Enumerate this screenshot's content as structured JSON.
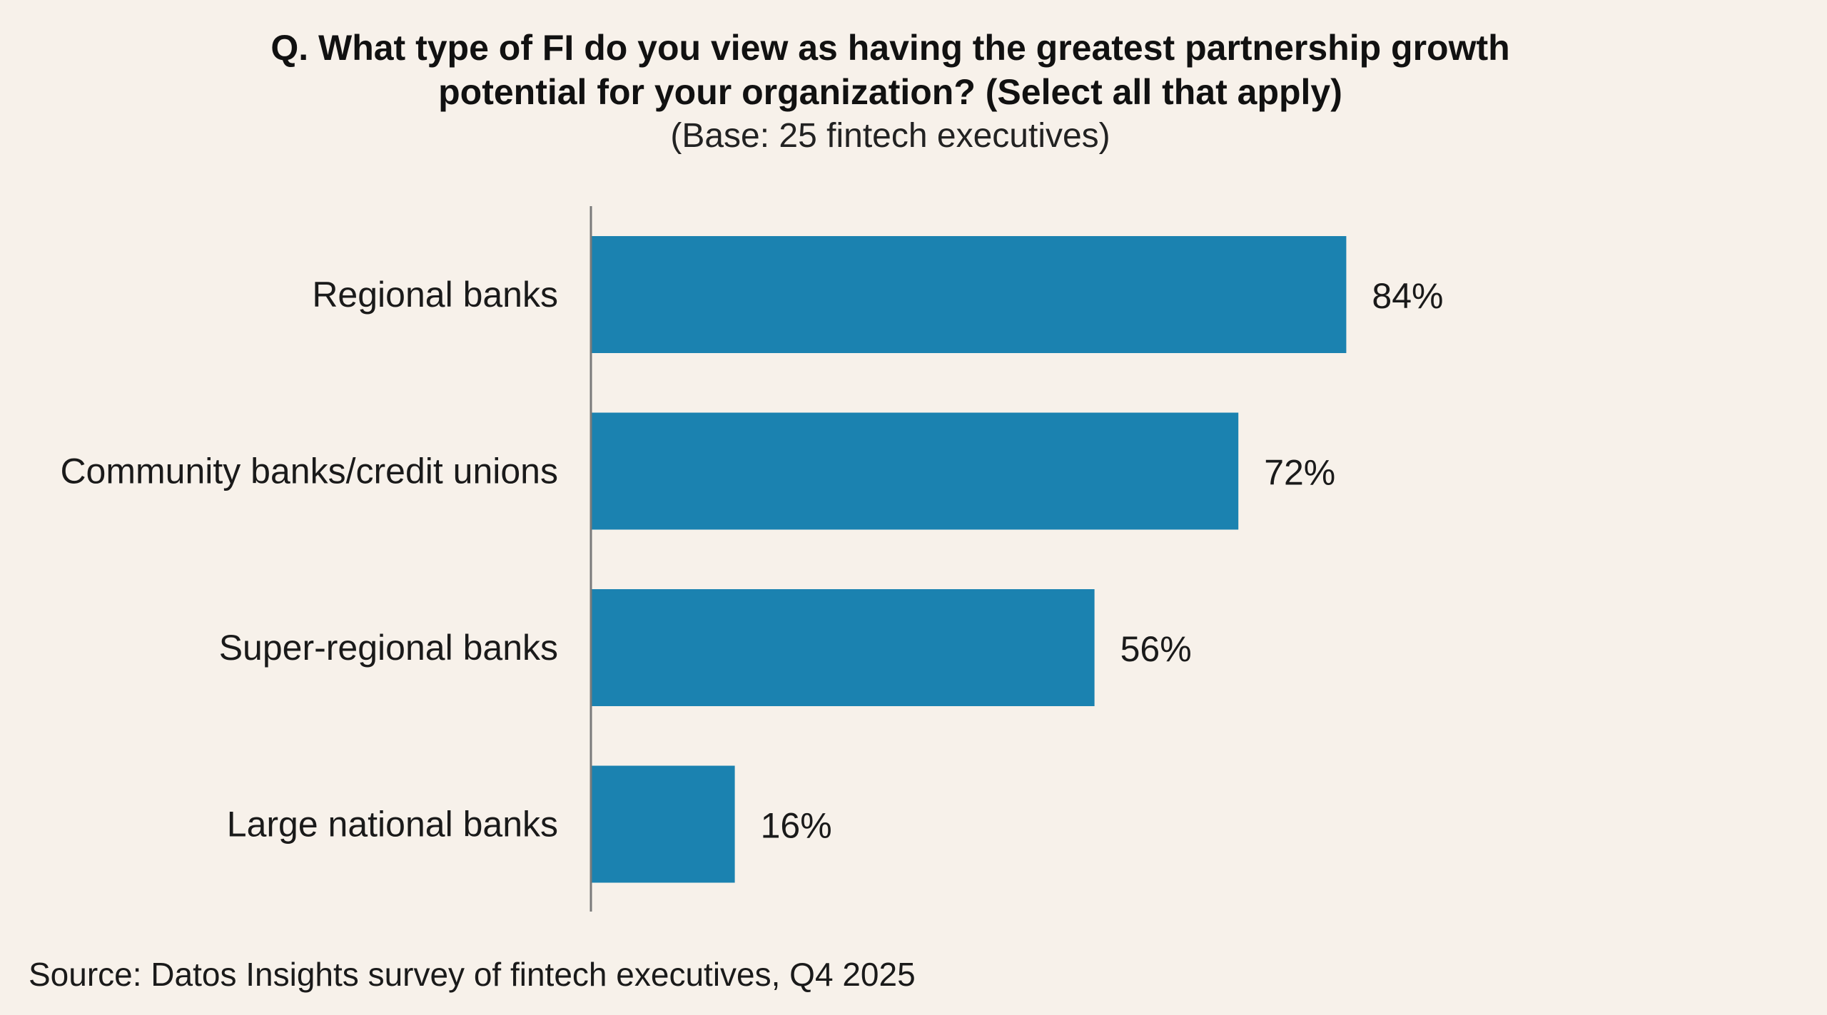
{
  "title_lines": [
    "Q. What type of FI do you view as having the greatest partnership growth",
    "potential for your organization? (Select all that apply)"
  ],
  "subtitle": "(Base: 25 fintech executives)",
  "source": "Source: Datos Insights survey of fintech executives, Q4 2025",
  "colors": {
    "bar": "#1b82b0",
    "axis": "#7a7a7a",
    "background": "#f7f1ea"
  },
  "chart_data": {
    "type": "bar",
    "orientation": "horizontal",
    "title": "Q. What type of FI do you view as having the greatest partnership growth potential for your organization? (Select all that apply)",
    "subtitle": "(Base: 25 fintech executives)",
    "categories": [
      "Regional banks",
      "Community banks/credit unions",
      "Super-regional banks",
      "Large national banks"
    ],
    "values": [
      84,
      72,
      56,
      16
    ],
    "value_labels": [
      "84%",
      "72%",
      "56%",
      "16%"
    ],
    "xlim": [
      0,
      100
    ],
    "grid": false,
    "legend": "none"
  }
}
